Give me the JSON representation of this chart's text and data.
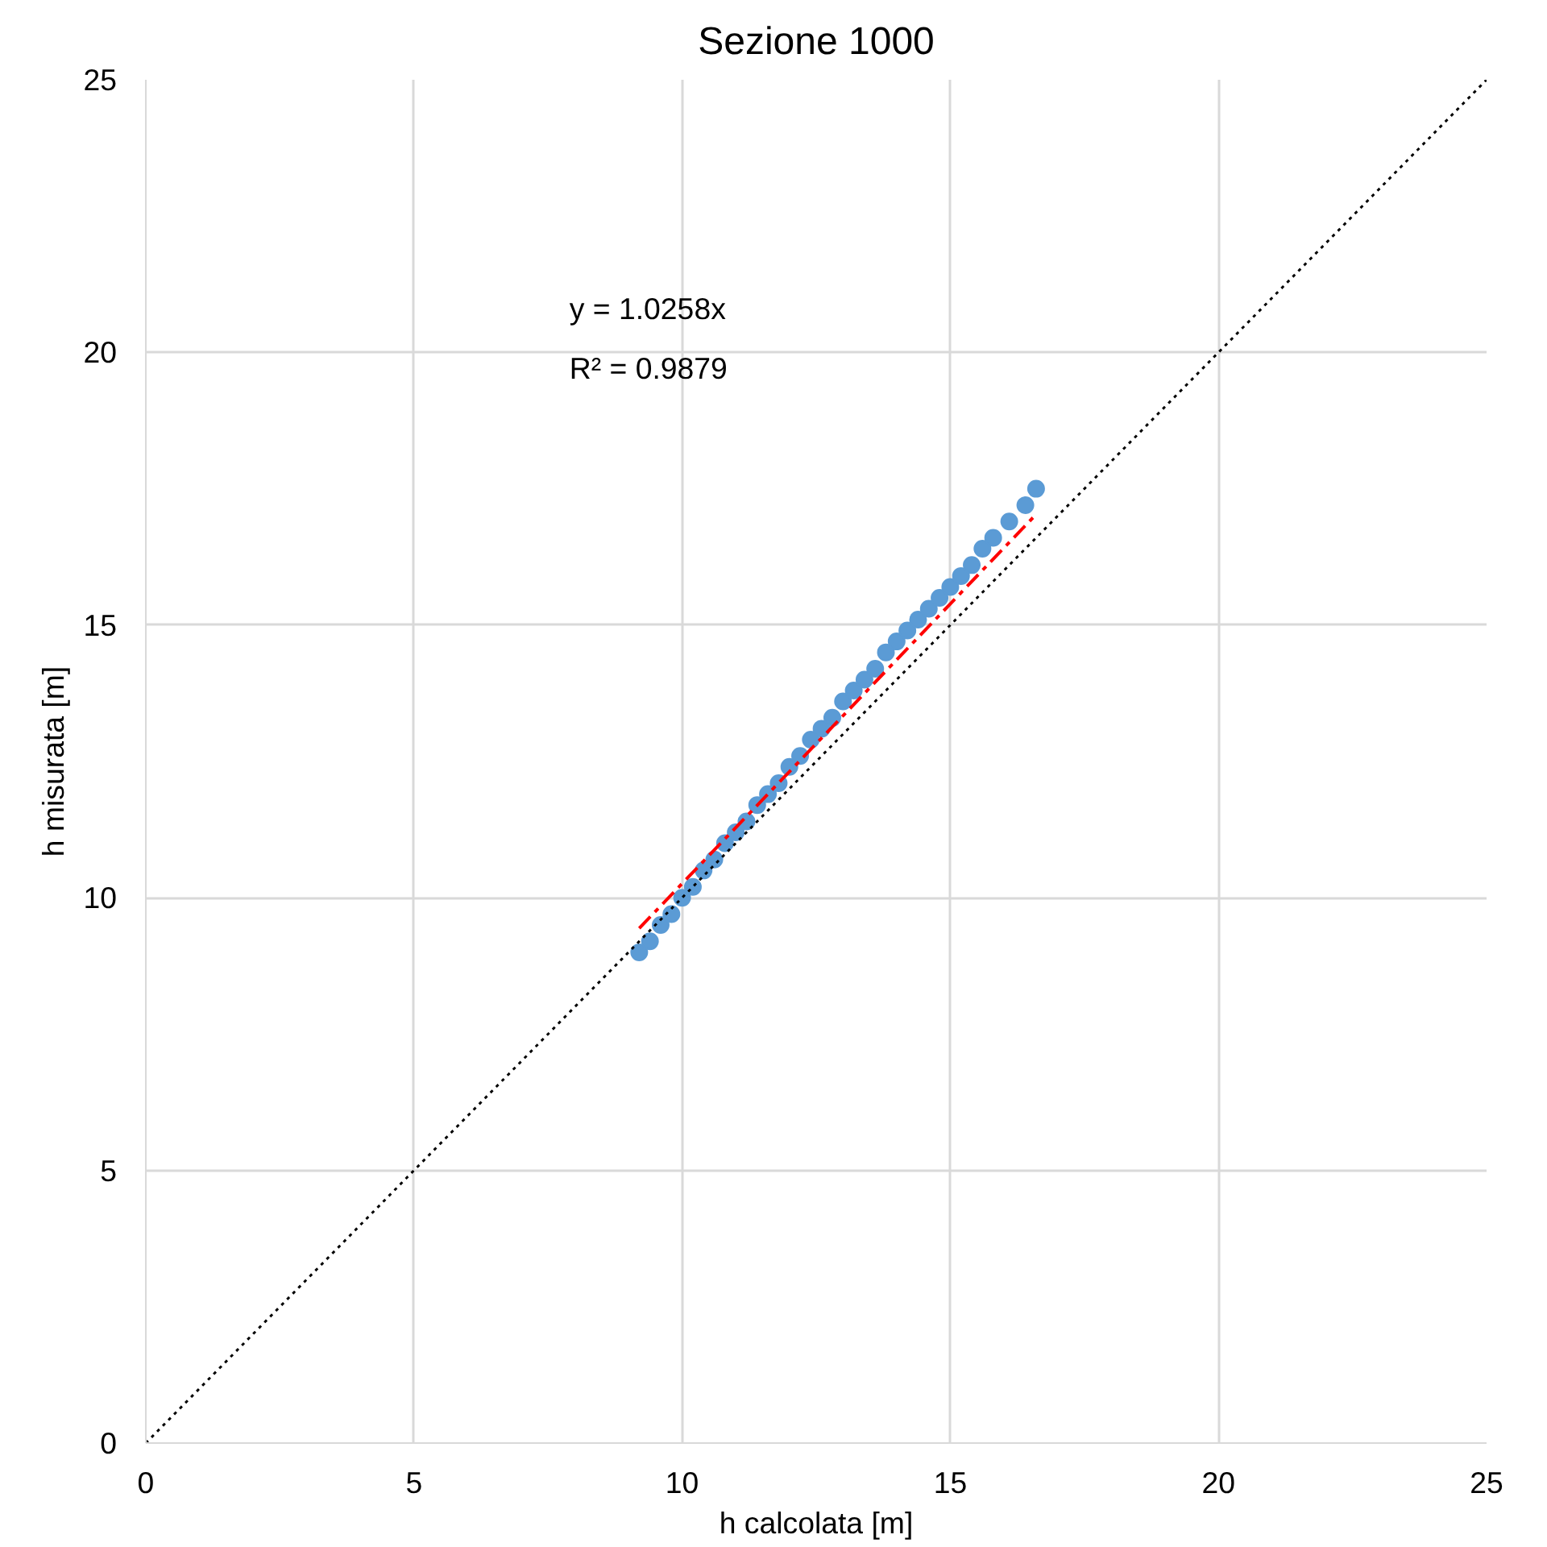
{
  "chart_data": {
    "type": "scatter",
    "title": "Sezione 1000",
    "xlabel": "h calcolata [m]",
    "ylabel": "h misurata [m]",
    "xlim": [
      0,
      25
    ],
    "ylim": [
      0,
      25
    ],
    "xticks": [
      0,
      5,
      10,
      15,
      20,
      25
    ],
    "yticks": [
      0,
      5,
      10,
      15,
      20,
      25
    ],
    "grid": true,
    "marker": "circle",
    "annotations": [
      "y = 1.0258x",
      "R² = 0.9879"
    ],
    "series": [
      {
        "color": "#5b9bd5",
        "x": [
          9.2,
          9.4,
          9.6,
          9.8,
          10.0,
          10.2,
          10.4,
          10.6,
          10.8,
          11.0,
          11.2,
          11.4,
          11.6,
          11.8,
          12.0,
          12.2,
          12.4,
          12.6,
          12.8,
          13.0,
          13.2,
          13.4,
          13.6,
          13.8,
          14.0,
          14.2,
          14.4,
          14.6,
          14.8,
          15.0,
          15.2,
          15.4,
          15.6,
          15.8,
          16.1,
          16.4,
          16.6
        ],
        "values": [
          9.0,
          9.2,
          9.5,
          9.7,
          10.0,
          10.2,
          10.5,
          10.7,
          11.0,
          11.2,
          11.4,
          11.7,
          11.9,
          12.1,
          12.4,
          12.6,
          12.9,
          13.1,
          13.3,
          13.6,
          13.8,
          14.0,
          14.2,
          14.5,
          14.7,
          14.9,
          15.1,
          15.3,
          15.5,
          15.7,
          15.9,
          16.1,
          16.4,
          16.6,
          16.9,
          17.2,
          17.5
        ]
      },
      {
        "type": "line",
        "color": "#ff0000",
        "line_style": "dashed",
        "marker": "none",
        "x": [
          9.2,
          16.6
        ],
        "values": [
          9.44,
          17.03
        ]
      },
      {
        "type": "line",
        "color": "#000000",
        "line_style": "dotted",
        "marker": "none",
        "x": [
          0,
          25
        ],
        "values": [
          0,
          25
        ]
      }
    ]
  }
}
